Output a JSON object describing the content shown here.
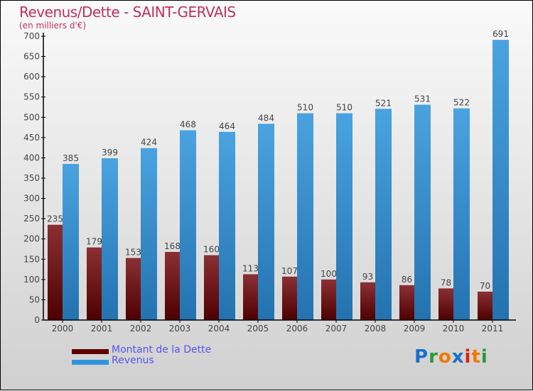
{
  "chart_data": {
    "type": "bar",
    "title": "Revenus/Dette - SAINT-GERVAIS",
    "subtitle": "(en milliers d'€)",
    "categories": [
      "2000",
      "2001",
      "2002",
      "2003",
      "2004",
      "2005",
      "2006",
      "2007",
      "2008",
      "2009",
      "2010",
      "2011"
    ],
    "series": [
      {
        "name": "Montant de la Dette",
        "color": "#6b0f12",
        "values": [
          235,
          179,
          153,
          168,
          160,
          113,
          107,
          100,
          93,
          86,
          78,
          70
        ]
      },
      {
        "name": "Revenus",
        "color": "#3a95d8",
        "values": [
          385,
          399,
          424,
          468,
          464,
          484,
          510,
          510,
          521,
          531,
          522,
          691
        ]
      }
    ],
    "ylim": [
      0,
      700
    ],
    "yticks": [
      0,
      50,
      100,
      150,
      200,
      250,
      300,
      350,
      400,
      450,
      500,
      550,
      600,
      650,
      700
    ],
    "grid": false,
    "legend": "bottom-left"
  },
  "logo": "Proxiti"
}
